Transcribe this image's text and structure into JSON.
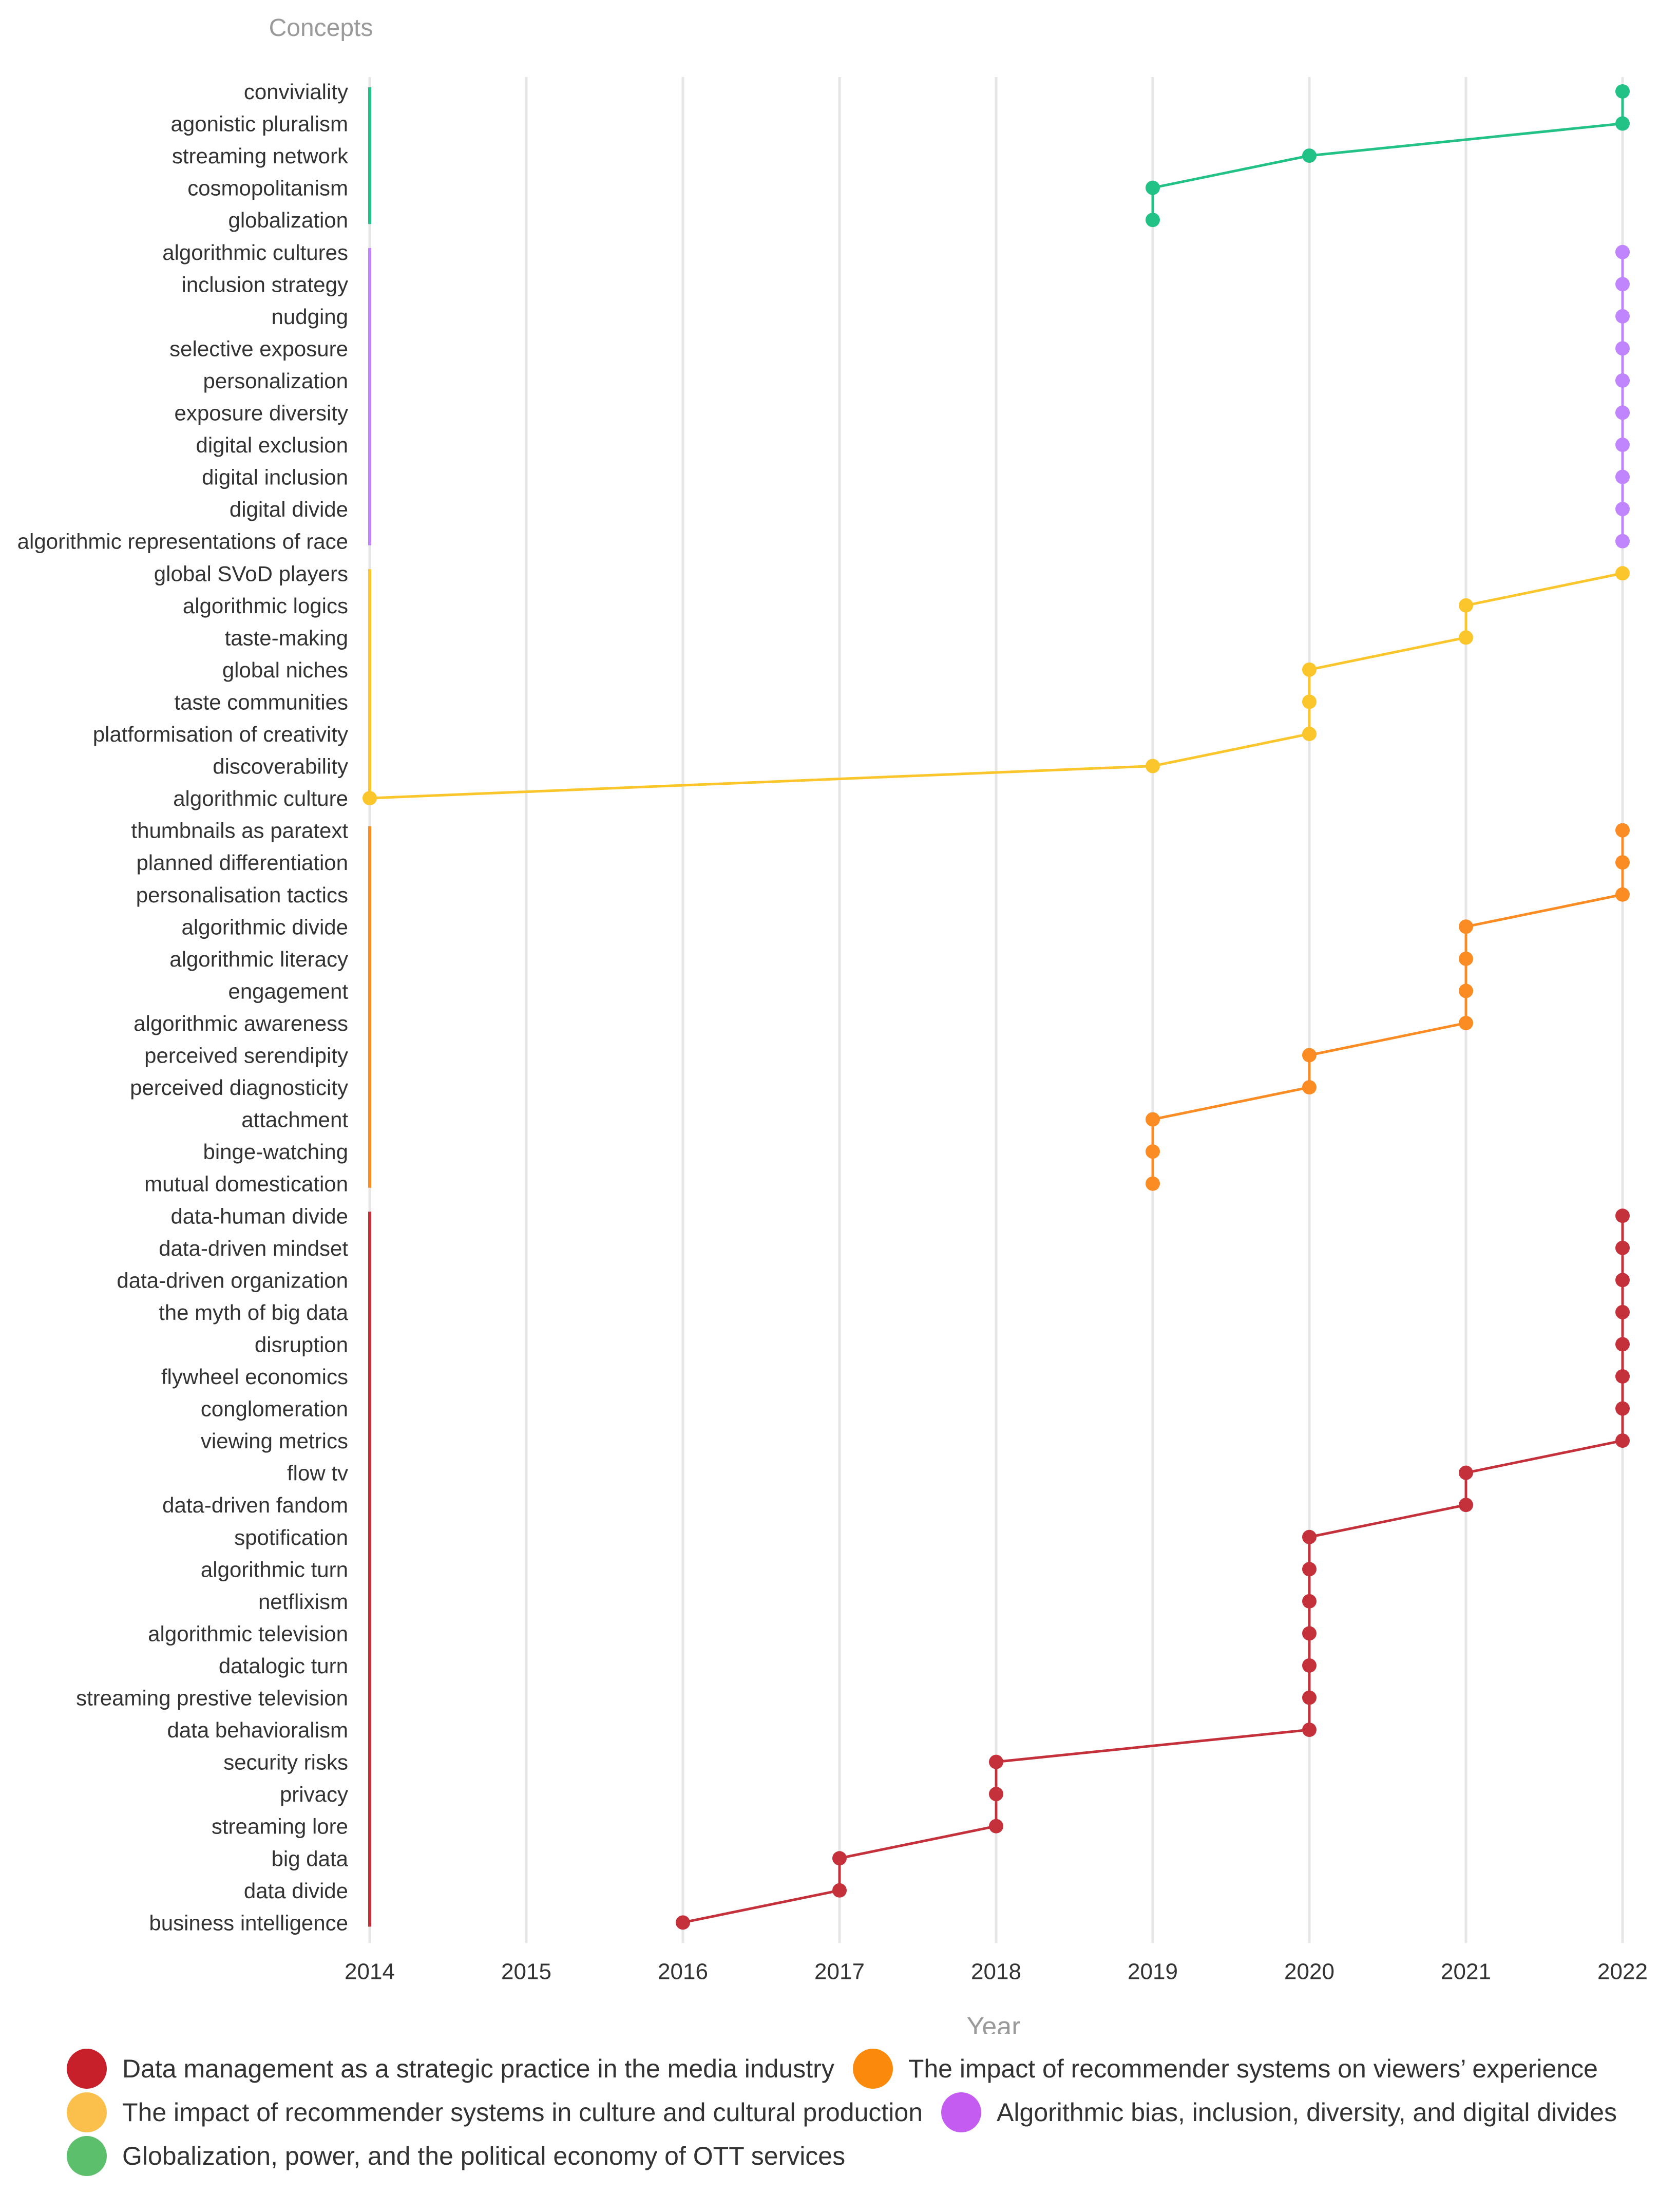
{
  "chart_data": {
    "type": "scatter",
    "title": "",
    "ylabel": "Concepts",
    "xlabel": "Year",
    "xlim": [
      2014,
      2022
    ],
    "x_ticks": [
      2014,
      2015,
      2016,
      2017,
      2018,
      2019,
      2020,
      2021,
      2022
    ],
    "grid": "vertical",
    "legend_position": "bottom",
    "series": [
      {
        "name": "Globalization, power, and the political economy of OTT services",
        "color": "#22c186",
        "legend_color": "#5bbf6b",
        "points": [
          {
            "concept": "conviviality",
            "year": 2022
          },
          {
            "concept": "agonistic pluralism",
            "year": 2022
          },
          {
            "concept": "streaming network",
            "year": 2020
          },
          {
            "concept": "cosmopolitanism",
            "year": 2019
          },
          {
            "concept": "globalization",
            "year": 2019
          }
        ]
      },
      {
        "name": "Algorithmic bias, inclusion, diversity, and digital divides",
        "color": "#c084fc",
        "legend_color": "#c55cf2",
        "points": [
          {
            "concept": "algorithmic cultures",
            "year": 2022
          },
          {
            "concept": "inclusion strategy",
            "year": 2022
          },
          {
            "concept": "nudging",
            "year": 2022
          },
          {
            "concept": "selective exposure",
            "year": 2022
          },
          {
            "concept": "personalization",
            "year": 2022
          },
          {
            "concept": "exposure diversity",
            "year": 2022
          },
          {
            "concept": "digital exclusion",
            "year": 2022
          },
          {
            "concept": "digital inclusion",
            "year": 2022
          },
          {
            "concept": "digital divide",
            "year": 2022
          },
          {
            "concept": "algorithmic representations of race",
            "year": 2022
          }
        ]
      },
      {
        "name": "The impact of recommender systems in culture and cultural production",
        "color": "#fbc62c",
        "legend_color": "#fbc04b",
        "points": [
          {
            "concept": "global SVoD players",
            "year": 2022
          },
          {
            "concept": "algorithmic logics",
            "year": 2021
          },
          {
            "concept": "taste-making",
            "year": 2021
          },
          {
            "concept": "global niches",
            "year": 2020
          },
          {
            "concept": "taste communities",
            "year": 2020
          },
          {
            "concept": "platformisation of creativity",
            "year": 2020
          },
          {
            "concept": "discoverability",
            "year": 2019
          },
          {
            "concept": "algorithmic culture",
            "year": 2014
          }
        ]
      },
      {
        "name": "The impact of recommender systems on viewers’ experience",
        "color": "#fb8c24",
        "legend_color": "#fb8a0c",
        "points": [
          {
            "concept": "thumbnails as paratext",
            "year": 2022
          },
          {
            "concept": "planned differentiation",
            "year": 2022
          },
          {
            "concept": "personalisation tactics",
            "year": 2022
          },
          {
            "concept": "algorithmic divide",
            "year": 2021
          },
          {
            "concept": "algorithmic literacy",
            "year": 2021
          },
          {
            "concept": "engagement",
            "year": 2021
          },
          {
            "concept": "algorithmic awareness",
            "year": 2021
          },
          {
            "concept": "perceived serendipity",
            "year": 2020
          },
          {
            "concept": "perceived diagnosticity",
            "year": 2020
          },
          {
            "concept": "attachment",
            "year": 2019
          },
          {
            "concept": "binge-watching",
            "year": 2019
          },
          {
            "concept": "mutual domestication",
            "year": 2019
          }
        ]
      },
      {
        "name": "Data management as a strategic practice in the media industry",
        "color": "#c5313b",
        "legend_color": "#c8202a",
        "points": [
          {
            "concept": "data-human divide",
            "year": 2022
          },
          {
            "concept": "data-driven mindset",
            "year": 2022
          },
          {
            "concept": "data-driven organization",
            "year": 2022
          },
          {
            "concept": "the myth of big data",
            "year": 2022
          },
          {
            "concept": "disruption",
            "year": 2022
          },
          {
            "concept": "flywheel economics",
            "year": 2022
          },
          {
            "concept": "conglomeration",
            "year": 2022
          },
          {
            "concept": "viewing metrics",
            "year": 2022
          },
          {
            "concept": "flow tv",
            "year": 2021
          },
          {
            "concept": "data-driven fandom",
            "year": 2021
          },
          {
            "concept": "spotification",
            "year": 2020
          },
          {
            "concept": "algorithmic turn",
            "year": 2020
          },
          {
            "concept": "netflixism",
            "year": 2020
          },
          {
            "concept": "algorithmic television",
            "year": 2020
          },
          {
            "concept": "datalogic turn",
            "year": 2020
          },
          {
            "concept": "streaming prestive television",
            "year": 2020
          },
          {
            "concept": "data behavioralism",
            "year": 2020
          },
          {
            "concept": "security risks",
            "year": 2018
          },
          {
            "concept": "privacy",
            "year": 2018
          },
          {
            "concept": "streaming lore",
            "year": 2018
          },
          {
            "concept": "big data",
            "year": 2017
          },
          {
            "concept": "data divide",
            "year": 2017
          },
          {
            "concept": "business intelligence",
            "year": 2016
          }
        ]
      }
    ],
    "legend_order": [
      [
        "Data management as a strategic practice in the media industry",
        "The impact of recommender systems on viewers’ experience"
      ],
      [
        "The impact of recommender systems in culture and cultural production",
        "Algorithmic bias, inclusion, diversity, and digital divides"
      ],
      [
        "Globalization, power, and the political economy of OTT services"
      ]
    ]
  }
}
